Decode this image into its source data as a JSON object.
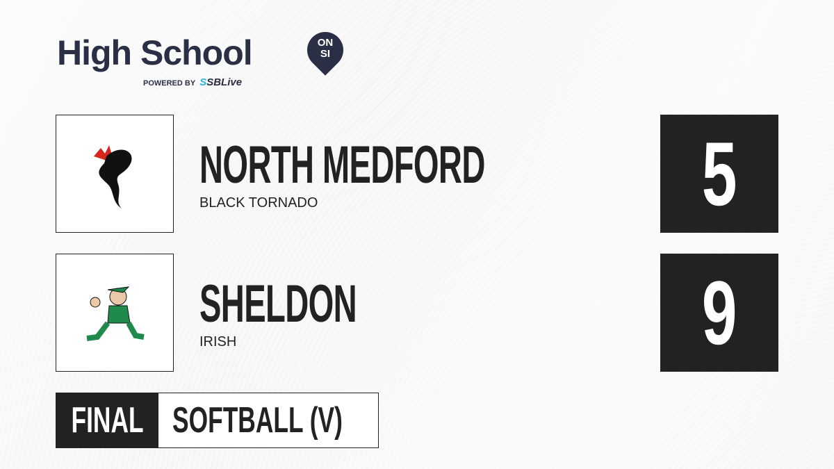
{
  "brand": {
    "title": "High School",
    "badge_top": "ON",
    "badge_bottom": "SI",
    "powered_by": "POWERED BY",
    "partner_prefix": "S",
    "partner": "SBLive"
  },
  "teams": [
    {
      "name": "NORTH MEDFORD",
      "mascot": "BLACK TORNADO",
      "score": "5",
      "logo_icon": "black-tornado-logo"
    },
    {
      "name": "SHELDON",
      "mascot": "IRISH",
      "score": "9",
      "logo_icon": "fighting-irish-logo"
    }
  ],
  "status": "FINAL",
  "sport": "SOFTBALL (V)",
  "colors": {
    "dark": "#222222",
    "brand_navy": "#2b2f45",
    "sblive_blue": "#2bb3e6"
  }
}
